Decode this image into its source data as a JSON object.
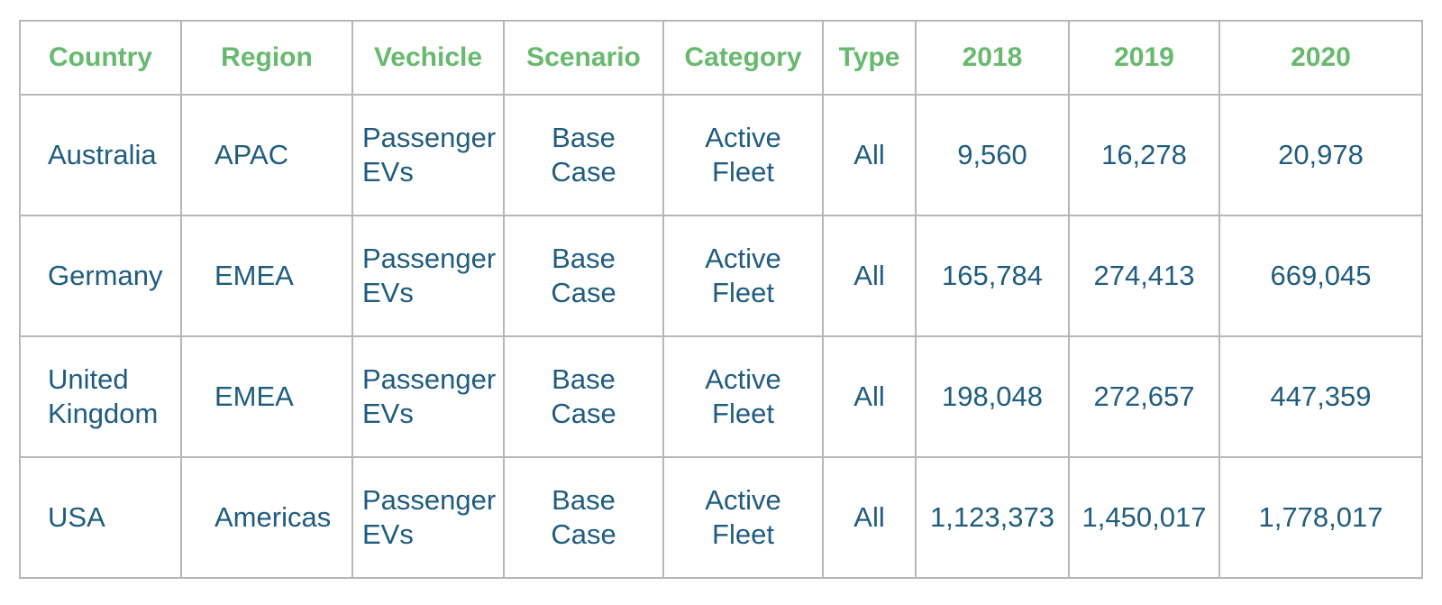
{
  "table": {
    "headers": [
      "Country",
      "Region",
      "Vechicle",
      "Scenario",
      "Category",
      "Type",
      "2018",
      "2019",
      "2020"
    ],
    "rows": [
      {
        "country": "Australia",
        "region": "APAC",
        "vehicle": "Passenger EVs",
        "scenario": "Base Case",
        "category": "Active Fleet",
        "type": "All",
        "y2018": "9,560",
        "y2019": "16,278",
        "y2020": "20,978"
      },
      {
        "country": "Germany",
        "region": "EMEA",
        "vehicle": "Passenger EVs",
        "scenario": "Base Case",
        "category": "Active Fleet",
        "type": "All",
        "y2018": "165,784",
        "y2019": "274,413",
        "y2020": "669,045"
      },
      {
        "country": "United Kingdom",
        "region": "EMEA",
        "vehicle": "Passenger EVs",
        "scenario": "Base Case",
        "category": "Active Fleet",
        "type": "All",
        "y2018": "198,048",
        "y2019": "272,657",
        "y2020": "447,359"
      },
      {
        "country": "USA",
        "region": "Americas",
        "vehicle": "Passenger EVs",
        "scenario": "Base Case",
        "category": "Active Fleet",
        "type": "All",
        "y2018": "1,123,373",
        "y2019": "1,450,017",
        "y2020": "1,778,017"
      }
    ],
    "colors": {
      "header_text": "#67ba6d",
      "body_text": "#1f5c80",
      "border_inner": "#b7b7b7",
      "border_outer": "#979797"
    }
  }
}
